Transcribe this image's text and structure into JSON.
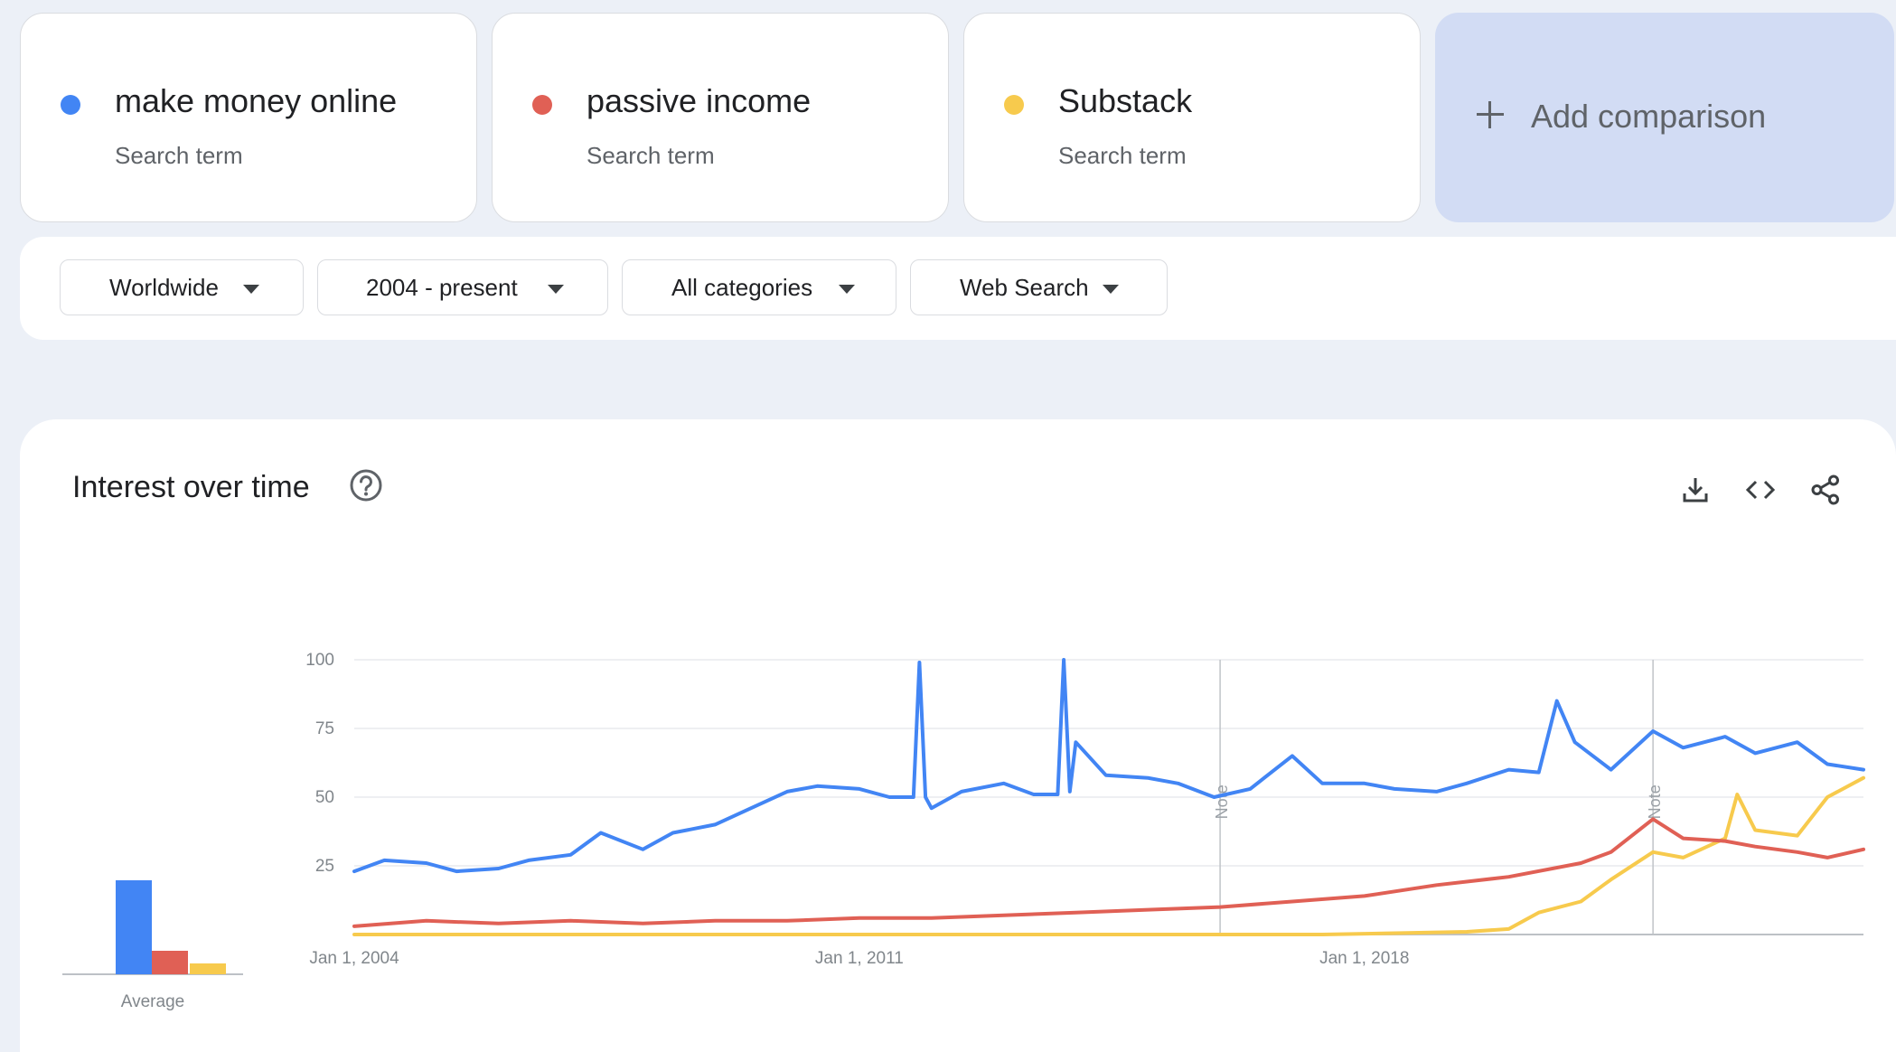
{
  "colors": {
    "blue": "#4285f4",
    "red": "#e06055",
    "yellow": "#f7ca4d"
  },
  "terms": [
    {
      "name": "make money online",
      "type": "Search term",
      "color": "#4285f4"
    },
    {
      "name": "passive income",
      "type": "Search term",
      "color": "#e06055"
    },
    {
      "name": "Substack",
      "type": "Search term",
      "color": "#f7ca4d"
    }
  ],
  "add_comparison": {
    "label": "Add comparison",
    "icon": "plus-icon"
  },
  "filters": [
    {
      "label": "Worldwide",
      "icon": "caret-down-icon"
    },
    {
      "label": "2004 - present",
      "icon": "caret-down-icon"
    },
    {
      "label": "All categories",
      "icon": "caret-down-icon"
    },
    {
      "label": "Web Search",
      "icon": "caret-down-icon"
    }
  ],
  "section": {
    "title": "Interest over time",
    "icons": [
      "help-icon",
      "download-icon",
      "embed-code-icon",
      "share-icon"
    ]
  },
  "chart_data": [
    {
      "type": "bar",
      "categories": [
        "make money online",
        "passive income",
        "Substack"
      ],
      "values": [
        52,
        13,
        6
      ],
      "xlabel": "Average",
      "ylim": [
        0,
        100
      ]
    },
    {
      "type": "line",
      "x_range": [
        "2004-01",
        "2024-12"
      ],
      "xticks": [
        "Jan 1, 2004",
        "Jan 1, 2011",
        "Jan 1, 2018"
      ],
      "ylim": [
        0,
        100
      ],
      "yticks": [
        25,
        50,
        75,
        100
      ],
      "grid": true,
      "annotations": [
        {
          "label": "Note",
          "date": "2016-01"
        },
        {
          "label": "Note",
          "date": "2022-01"
        }
      ],
      "series": [
        {
          "name": "make money online",
          "color": "#4285f4",
          "points": [
            [
              "2004-01",
              23
            ],
            [
              "2004-06",
              27
            ],
            [
              "2005-01",
              26
            ],
            [
              "2005-06",
              23
            ],
            [
              "2006-01",
              24
            ],
            [
              "2006-06",
              27
            ],
            [
              "2007-01",
              29
            ],
            [
              "2007-06",
              37
            ],
            [
              "2008-01",
              31
            ],
            [
              "2008-06",
              37
            ],
            [
              "2009-01",
              40
            ],
            [
              "2009-06",
              45
            ],
            [
              "2010-01",
              52
            ],
            [
              "2010-06",
              54
            ],
            [
              "2011-01",
              53
            ],
            [
              "2011-06",
              50
            ],
            [
              "2011-10",
              50
            ],
            [
              "2011-11",
              99
            ],
            [
              "2011-12",
              50
            ],
            [
              "2012-01",
              46
            ],
            [
              "2012-06",
              52
            ],
            [
              "2013-01",
              55
            ],
            [
              "2013-06",
              51
            ],
            [
              "2013-10",
              51
            ],
            [
              "2013-11",
              100
            ],
            [
              "2013-12",
              52
            ],
            [
              "2014-01",
              70
            ],
            [
              "2014-06",
              58
            ],
            [
              "2015-01",
              57
            ],
            [
              "2015-06",
              55
            ],
            [
              "2015-12",
              50
            ],
            [
              "2016-06",
              53
            ],
            [
              "2017-01",
              65
            ],
            [
              "2017-06",
              55
            ],
            [
              "2018-01",
              55
            ],
            [
              "2018-06",
              53
            ],
            [
              "2019-01",
              52
            ],
            [
              "2019-06",
              55
            ],
            [
              "2020-01",
              60
            ],
            [
              "2020-06",
              59
            ],
            [
              "2020-09",
              85
            ],
            [
              "2020-12",
              70
            ],
            [
              "2021-06",
              60
            ],
            [
              "2022-01",
              74
            ],
            [
              "2022-06",
              68
            ],
            [
              "2023-01",
              72
            ],
            [
              "2023-06",
              66
            ],
            [
              "2024-01",
              70
            ],
            [
              "2024-06",
              62
            ],
            [
              "2024-12",
              60
            ]
          ]
        },
        {
          "name": "passive income",
          "color": "#e06055",
          "points": [
            [
              "2004-01",
              3
            ],
            [
              "2005-01",
              5
            ],
            [
              "2006-01",
              4
            ],
            [
              "2007-01",
              5
            ],
            [
              "2008-01",
              4
            ],
            [
              "2009-01",
              5
            ],
            [
              "2010-01",
              5
            ],
            [
              "2011-01",
              6
            ],
            [
              "2012-01",
              6
            ],
            [
              "2013-01",
              7
            ],
            [
              "2014-01",
              8
            ],
            [
              "2015-01",
              9
            ],
            [
              "2016-01",
              10
            ],
            [
              "2017-01",
              12
            ],
            [
              "2018-01",
              14
            ],
            [
              "2019-01",
              18
            ],
            [
              "2020-01",
              21
            ],
            [
              "2021-01",
              26
            ],
            [
              "2021-06",
              30
            ],
            [
              "2022-01",
              42
            ],
            [
              "2022-06",
              35
            ],
            [
              "2023-01",
              34
            ],
            [
              "2023-06",
              32
            ],
            [
              "2024-01",
              30
            ],
            [
              "2024-06",
              28
            ],
            [
              "2024-12",
              31
            ]
          ]
        },
        {
          "name": "Substack",
          "color": "#f7ca4d",
          "points": [
            [
              "2004-01",
              0
            ],
            [
              "2017-06",
              0
            ],
            [
              "2019-06",
              1
            ],
            [
              "2020-01",
              2
            ],
            [
              "2020-06",
              8
            ],
            [
              "2021-01",
              12
            ],
            [
              "2021-06",
              20
            ],
            [
              "2022-01",
              30
            ],
            [
              "2022-06",
              28
            ],
            [
              "2023-01",
              35
            ],
            [
              "2023-03",
              51
            ],
            [
              "2023-06",
              38
            ],
            [
              "2024-01",
              36
            ],
            [
              "2024-06",
              50
            ],
            [
              "2024-12",
              57
            ]
          ]
        }
      ]
    }
  ]
}
